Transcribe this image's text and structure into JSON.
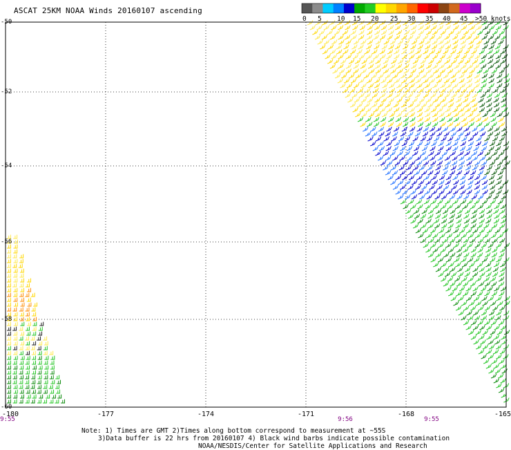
{
  "title": "ASCAT 25KM NOAA Winds 20160107 ascending",
  "legend": {
    "labels": [
      "0",
      "5",
      "10",
      "15",
      "20",
      "25",
      "30",
      "35",
      "40",
      "45",
      ">50 knots"
    ],
    "colors": [
      "#555555",
      "#8c8c8c",
      "#00ccff",
      "#0080ff",
      "#0000cc",
      "#00aa00",
      "#22cc22",
      "#ffff00",
      "#ffd700",
      "#ffa500",
      "#ff6600",
      "#ff0000",
      "#cc0000",
      "#8b4513",
      "#d2691e",
      "#cc00cc",
      "#9900cc"
    ]
  },
  "axes": {
    "lon_labels": [
      "-180",
      "-177",
      "-174",
      "-171",
      "-168",
      "-165"
    ],
    "lat_labels": [
      "-50",
      "-52",
      "-54",
      "-56",
      "-58",
      "-60"
    ]
  },
  "times": [
    "9:55",
    "9:56",
    "9:55"
  ],
  "notes": {
    "line1": "Note: 1) Times are GMT 2)Times along bottom correspond to measurement at ~55S",
    "line2": "3)Data buffer is 22 hrs from 20160107 4) Black wind barbs indicate possible contamination",
    "line3": "NOAA/NESDIS/Center for Satellite Applications and Research"
  }
}
